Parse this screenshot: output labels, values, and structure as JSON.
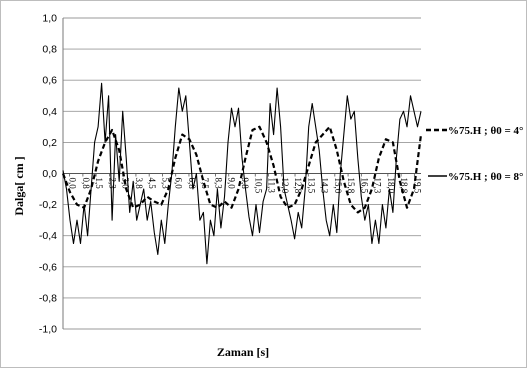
{
  "chart_data": {
    "type": "line",
    "title": "",
    "xlabel": "Zaman [s]",
    "ylabel": "Dalga[ cm ]",
    "ylim": [
      -1.0,
      1.0
    ],
    "yticks": [
      "-1,0",
      "-0,8",
      "-0,6",
      "-0,4",
      "-0,2",
      "0,0",
      "0,2",
      "0,4",
      "0,6",
      "0,8",
      "1,0"
    ],
    "xlim": [
      0,
      20.4
    ],
    "xticks": [
      "0,0",
      "0,8",
      "1,5",
      "2,3",
      "3,0",
      "3,8",
      "4,5",
      "5,3",
      "6,0",
      "6,8",
      "7,5",
      "8,3",
      "9,0",
      "9,8",
      "10,5",
      "11,3",
      "12,0",
      "12,8",
      "13,5",
      "14,3",
      "15,0",
      "15,8",
      "16,5",
      "17,3",
      "18,0",
      "18,8",
      "19,5"
    ],
    "grid": true,
    "legend": "right",
    "series": [
      {
        "name": "%75.H ; θ0 = 4°",
        "style": "dashed",
        "color": "#000000",
        "x": [
          0,
          0.4,
          0.8,
          1.2,
          1.6,
          2.0,
          2.4,
          2.8,
          3.2,
          3.6,
          4.0,
          4.4,
          4.8,
          5.2,
          5.6,
          6.0,
          6.4,
          6.8,
          7.2,
          7.6,
          8.0,
          8.4,
          8.8,
          9.2,
          9.6,
          10.0,
          10.4,
          10.8,
          11.2,
          11.6,
          12.0,
          12.4,
          12.8,
          13.2,
          13.6,
          14.0,
          14.4,
          14.8,
          15.2,
          15.6,
          16.0,
          16.4,
          16.8,
          17.2,
          17.6,
          18.0,
          18.4,
          18.8,
          19.2,
          19.6,
          20.0,
          20.4
        ],
        "y": [
          0.0,
          -0.12,
          -0.2,
          -0.22,
          -0.1,
          0.08,
          0.2,
          0.28,
          0.15,
          -0.1,
          -0.22,
          -0.2,
          -0.15,
          -0.18,
          -0.2,
          -0.1,
          0.1,
          0.25,
          0.22,
          0.12,
          -0.05,
          -0.2,
          -0.22,
          -0.18,
          -0.22,
          -0.1,
          0.1,
          0.28,
          0.3,
          0.2,
          0.05,
          -0.15,
          -0.22,
          -0.2,
          -0.1,
          0.05,
          0.2,
          0.25,
          0.3,
          0.15,
          -0.05,
          -0.2,
          -0.25,
          -0.22,
          -0.1,
          0.1,
          0.22,
          0.2,
          -0.05,
          -0.22,
          -0.1,
          0.25
        ]
      },
      {
        "name": "%75.H ; θ0 = 8°",
        "style": "solid",
        "color": "#000000",
        "x": [
          0,
          0.2,
          0.4,
          0.6,
          0.8,
          1.0,
          1.2,
          1.4,
          1.6,
          1.8,
          2.0,
          2.2,
          2.4,
          2.6,
          2.8,
          3.0,
          3.2,
          3.4,
          3.6,
          3.8,
          4.0,
          4.2,
          4.4,
          4.6,
          4.8,
          5.0,
          5.2,
          5.4,
          5.6,
          5.8,
          6.0,
          6.2,
          6.4,
          6.6,
          6.8,
          7.0,
          7.2,
          7.4,
          7.6,
          7.8,
          8.0,
          8.2,
          8.4,
          8.6,
          8.8,
          9.0,
          9.2,
          9.4,
          9.6,
          9.8,
          10.0,
          10.2,
          10.4,
          10.6,
          10.8,
          11.0,
          11.2,
          11.4,
          11.6,
          11.8,
          12.0,
          12.2,
          12.4,
          12.6,
          12.8,
          13.0,
          13.2,
          13.4,
          13.6,
          13.8,
          14.0,
          14.2,
          14.4,
          14.6,
          14.8,
          15.0,
          15.2,
          15.4,
          15.6,
          15.8,
          16.0,
          16.2,
          16.4,
          16.6,
          16.8,
          17.0,
          17.2,
          17.4,
          17.6,
          17.8,
          18.0,
          18.2,
          18.4,
          18.6,
          18.8,
          19.0,
          19.2,
          19.4,
          19.6,
          19.8,
          20.0,
          20.2,
          20.4
        ],
        "y": [
          0.02,
          -0.1,
          -0.3,
          -0.45,
          -0.3,
          -0.45,
          -0.2,
          -0.4,
          -0.1,
          0.2,
          0.3,
          0.58,
          0.2,
          0.5,
          -0.3,
          0.25,
          -0.05,
          0.4,
          0.1,
          -0.25,
          -0.05,
          -0.3,
          -0.2,
          -0.1,
          -0.3,
          -0.18,
          -0.38,
          -0.52,
          -0.3,
          -0.45,
          -0.2,
          0.0,
          0.3,
          0.55,
          0.4,
          0.5,
          0.2,
          -0.1,
          0.0,
          -0.3,
          -0.25,
          -0.58,
          -0.3,
          -0.4,
          -0.1,
          -0.35,
          -0.15,
          0.2,
          0.42,
          0.3,
          0.42,
          0.1,
          -0.1,
          -0.28,
          -0.4,
          -0.2,
          -0.38,
          -0.18,
          -0.1,
          0.45,
          0.25,
          0.55,
          0.3,
          -0.1,
          -0.2,
          -0.3,
          -0.42,
          -0.25,
          -0.35,
          -0.1,
          0.3,
          0.45,
          0.3,
          0.15,
          -0.1,
          -0.3,
          -0.4,
          -0.2,
          -0.38,
          0.0,
          0.25,
          0.5,
          0.35,
          0.4,
          0.1,
          -0.15,
          -0.3,
          -0.2,
          -0.45,
          -0.3,
          -0.45,
          -0.2,
          -0.35,
          -0.1,
          -0.25,
          0.1,
          0.35,
          0.4,
          0.3,
          0.5,
          0.4,
          0.3,
          0.4
        ]
      }
    ]
  }
}
